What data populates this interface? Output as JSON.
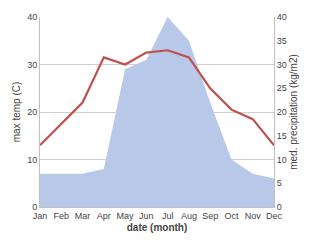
{
  "chart_data": {
    "type": "line",
    "categories": [
      "Jan",
      "Feb",
      "Mar",
      "Apr",
      "May",
      "Jun",
      "Jul",
      "Aug",
      "Sep",
      "Oct",
      "Nov",
      "Dec"
    ],
    "series": [
      {
        "type": "area",
        "axis": "y2",
        "color": "#b8c8e8",
        "values": [
          7,
          7,
          7,
          8,
          29,
          31,
          40,
          35,
          22,
          10,
          7,
          6
        ]
      },
      {
        "type": "line",
        "color": "#c0504d",
        "values": [
          13,
          17.5,
          22,
          31.5,
          30,
          32.5,
          33,
          31.5,
          25,
          20.5,
          18.5,
          13
        ]
      }
    ],
    "xlabel": "date (month)",
    "ylabel": "max temp (C)",
    "y2label": "med. precipitation (kg/m2)",
    "ylim": [
      0,
      40
    ],
    "yticks": [
      0,
      10,
      20,
      30,
      40
    ],
    "y2lim": [
      0,
      40
    ],
    "y2ticks": [
      0,
      5,
      10,
      15,
      20,
      25,
      30,
      35,
      40
    ],
    "grid": true
  }
}
